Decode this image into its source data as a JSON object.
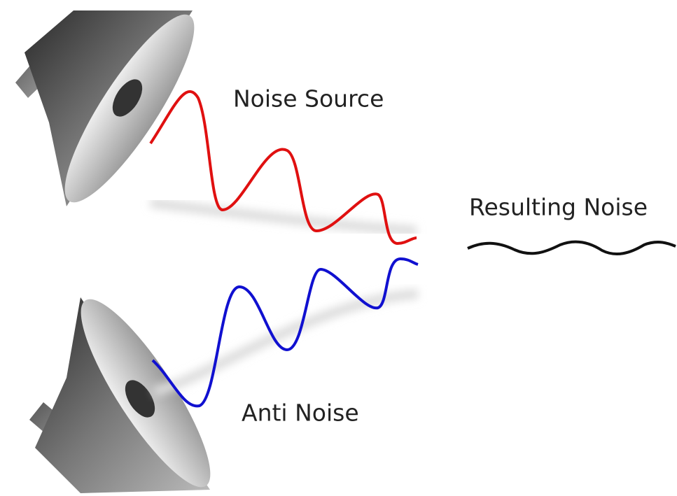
{
  "nodes": [
    {
      "label": "Noise Source"
    },
    {
      "label": "Resulting Noise"
    },
    {
      "label": "Anti Noise"
    }
  ]
}
